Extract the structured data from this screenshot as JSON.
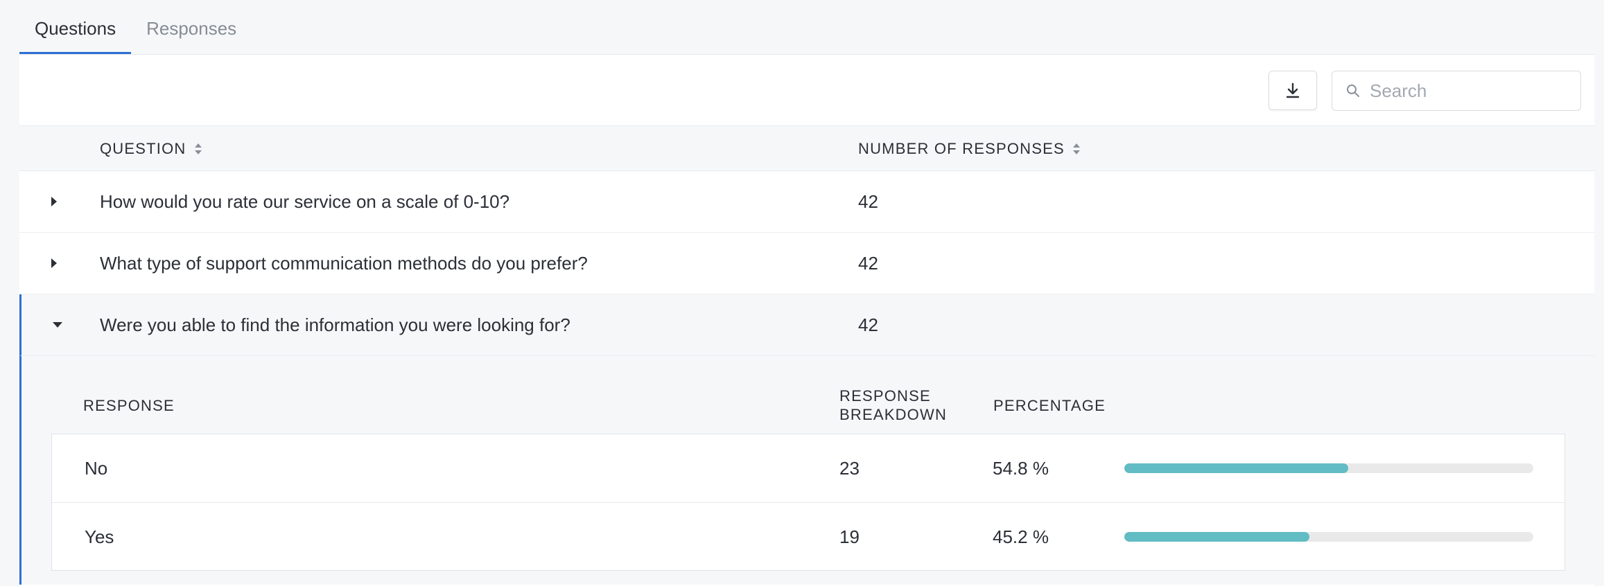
{
  "tabs": [
    {
      "label": "Questions",
      "active": true
    },
    {
      "label": "Responses",
      "active": false
    }
  ],
  "toolbar": {
    "download_icon": "download-icon",
    "search_placeholder": "Search",
    "search_value": ""
  },
  "table": {
    "headers": {
      "question": "QUESTION",
      "responses": "NUMBER OF RESPONSES"
    },
    "rows": [
      {
        "question": "How would you rate our service on a scale of 0-10?",
        "count": "42",
        "expanded": false
      },
      {
        "question": "What type of support communication methods do you prefer?",
        "count": "42",
        "expanded": false
      },
      {
        "question": "Were you able to find the information you were looking for?",
        "count": "42",
        "expanded": true
      }
    ]
  },
  "breakdown": {
    "headers": {
      "response": "RESPONSE",
      "breakdown_line1": "RESPONSE",
      "breakdown_line2": "BREAKDOWN",
      "percentage": "PERCENTAGE"
    },
    "rows": [
      {
        "response": "No",
        "count": "23",
        "percentage": "54.8 %",
        "fraction": 0.548
      },
      {
        "response": "Yes",
        "count": "19",
        "percentage": "45.2 %",
        "fraction": 0.452
      }
    ]
  },
  "colors": {
    "accent": "#2d6fd3",
    "bar": "#62bcc4",
    "bar_track": "#e9e9e9"
  }
}
